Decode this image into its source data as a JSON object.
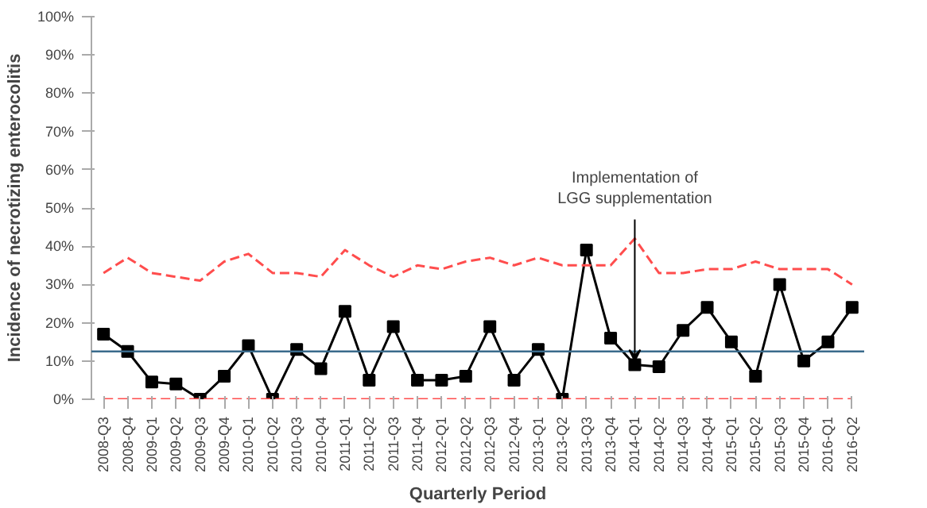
{
  "chart_data": {
    "type": "line",
    "xlabel": "Quarterly Period",
    "ylabel": "Incidence of necrotizing enterocolitis",
    "categories": [
      "2008-Q3",
      "2008-Q4",
      "2009-Q1",
      "2009-Q2",
      "2009-Q3",
      "2009-Q4",
      "2010-Q1",
      "2010-Q2",
      "2010-Q3",
      "2010-Q4",
      "2011-Q1",
      "2011-Q2",
      "2011-Q3",
      "2011-Q4",
      "2012-Q1",
      "2012-Q2",
      "2012-Q3",
      "2012-Q4",
      "2013-Q1",
      "2013-Q2",
      "2013-Q3",
      "2013-Q4",
      "2014-Q1",
      "2014-Q2",
      "2014-Q3",
      "2014-Q4",
      "2015-Q1",
      "2015-Q2",
      "2015-Q3",
      "2015-Q4",
      "2016-Q1",
      "2016-Q2"
    ],
    "series": [
      {
        "color": "#000000",
        "marker": "square",
        "line_style": "solid",
        "values": [
          17,
          12.5,
          4.5,
          4,
          0,
          6,
          14,
          0,
          13,
          8,
          23,
          5,
          19,
          5,
          5,
          6,
          19,
          5,
          13,
          0,
          39,
          16,
          9,
          8.5,
          18,
          24,
          15,
          6,
          30,
          10,
          15,
          24
        ]
      },
      {
        "color": "#ff4d4d",
        "marker": "none",
        "line_style": "dashed",
        "values": [
          33,
          37,
          33,
          32,
          31,
          36,
          38,
          33,
          33,
          32,
          39,
          35,
          32,
          35,
          34,
          36,
          37,
          35,
          37,
          35,
          35,
          35,
          42,
          33,
          33,
          34,
          34,
          36,
          34,
          34,
          34,
          30
        ]
      },
      {
        "color": "#ff4d4d",
        "marker": "none",
        "line_style": "dashed",
        "values": [
          0,
          0,
          0,
          0,
          0,
          0,
          0,
          0,
          0,
          0,
          0,
          0,
          0,
          0,
          0,
          0,
          0,
          0,
          0,
          0,
          0,
          0,
          0,
          0,
          0,
          0,
          0,
          0,
          0,
          0,
          0,
          0
        ]
      }
    ],
    "ref_lines": [
      {
        "axis": "y",
        "value": 12.5,
        "color": "#3a6b8c",
        "line_style": "solid"
      }
    ],
    "annotations": [
      {
        "text": "Implementation of\nLGG supplementation",
        "x": "2014-Q1",
        "y": 10
      }
    ],
    "ylim": [
      0,
      100
    ],
    "yticks": [
      {
        "value": 0,
        "label": "0%"
      },
      {
        "value": 10,
        "label": "10%"
      },
      {
        "value": 20,
        "label": "20%"
      },
      {
        "value": 30,
        "label": "30%"
      },
      {
        "value": 40,
        "label": "40%"
      },
      {
        "value": 50,
        "label": "50%"
      },
      {
        "value": 60,
        "label": "60%"
      },
      {
        "value": 70,
        "label": "70%"
      },
      {
        "value": 80,
        "label": "80%"
      },
      {
        "value": 90,
        "label": "90%"
      },
      {
        "value": 100,
        "label": "100%"
      }
    ],
    "grid": false
  }
}
